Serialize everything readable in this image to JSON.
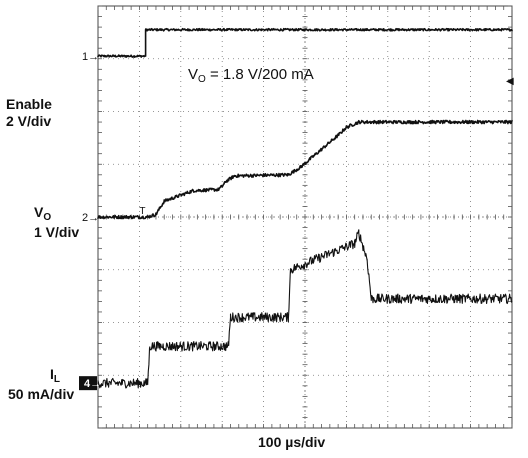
{
  "chart_data": {
    "type": "line",
    "title": "",
    "annotation": {
      "main": "V",
      "sub": "O",
      "rest": " = 1.8 V/200 mA"
    },
    "xlabel": "100 µs/div",
    "grid": true,
    "divisions": {
      "x": 10,
      "y": 8
    },
    "x_unit": "div",
    "xlim": [
      0,
      10
    ],
    "ylim": [
      0,
      8
    ],
    "channels": [
      {
        "name": "Enable",
        "marker": "1",
        "scale_label": "2 V/div"
      },
      {
        "name": "VO",
        "name_main": "V",
        "name_sub": "O",
        "marker": "2",
        "scale_label": "1 V/div"
      },
      {
        "name": "IL",
        "name_main": "I",
        "name_sub": "L",
        "marker": "4",
        "scale_label": "50 mA/div"
      }
    ],
    "series": [
      {
        "name": "Enable",
        "x": [
          0,
          1.15,
          1.15,
          10
        ],
        "y": [
          7.05,
          7.05,
          7.55,
          7.55
        ]
      },
      {
        "name": "VO",
        "x": [
          0,
          1.2,
          1.4,
          1.6,
          2.3,
          2.9,
          3.0,
          3.1,
          3.3,
          4.6,
          4.9,
          5.2,
          5.8,
          6.0,
          6.3,
          10
        ],
        "y": [
          4.0,
          4.0,
          4.05,
          4.3,
          4.5,
          4.52,
          4.58,
          4.68,
          4.78,
          4.8,
          4.95,
          5.15,
          5.55,
          5.7,
          5.8,
          5.8
        ]
      },
      {
        "name": "IL",
        "x": [
          0,
          1.2,
          1.25,
          3.15,
          3.2,
          4.6,
          4.65,
          6.2,
          6.3,
          6.5,
          6.6,
          10
        ],
        "y": [
          0.85,
          0.85,
          1.55,
          1.55,
          2.1,
          2.1,
          3.0,
          3.5,
          3.7,
          3.2,
          2.45,
          2.45
        ]
      }
    ],
    "noise": [
      0.02,
      0.03,
      0.09
    ],
    "trigger_marker": "T",
    "side_marker": "◀"
  }
}
